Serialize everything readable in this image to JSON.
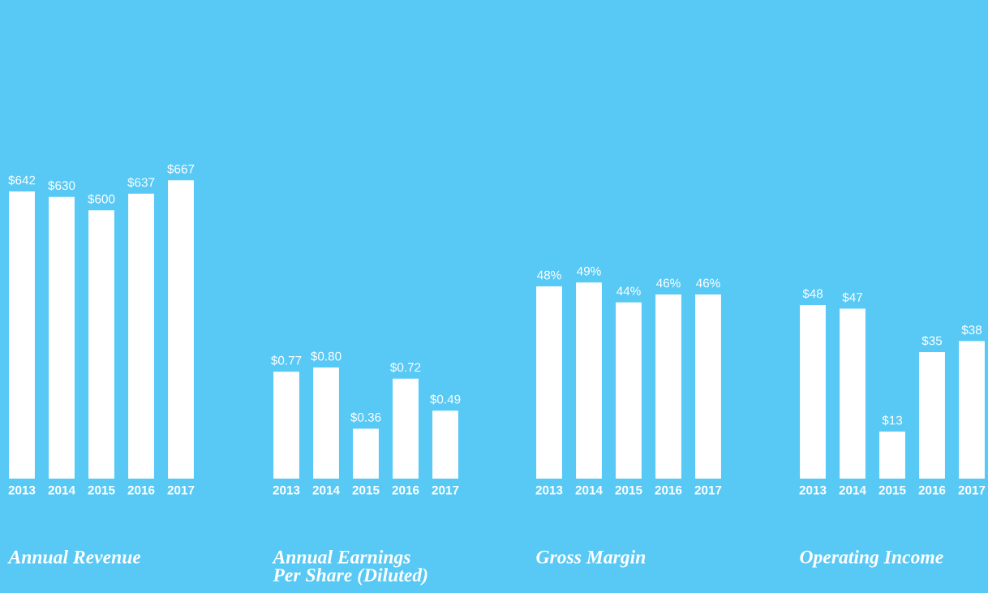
{
  "chart_data": [
    {
      "type": "bar",
      "title": "Annual Revenue",
      "categories": [
        "2013",
        "2014",
        "2015",
        "2016",
        "2017"
      ],
      "values": [
        642,
        630,
        600,
        637,
        667
      ],
      "value_labels": [
        "$642",
        "$630",
        "$600",
        "$637",
        "$667"
      ],
      "color": "#ffffff",
      "tick_labels": "x"
    },
    {
      "type": "bar",
      "title": "Annual Earnings\nPer Share (Diluted)",
      "categories": [
        "2013",
        "2014",
        "2015",
        "2016",
        "2017"
      ],
      "values": [
        0.77,
        0.8,
        0.36,
        0.72,
        0.49
      ],
      "value_labels": [
        "$0.77",
        "$0.80",
        "$0.36",
        "$0.72",
        "$0.49"
      ],
      "color": "#ffffff",
      "tick_labels": "x"
    },
    {
      "type": "bar",
      "title": "Gross Margin",
      "categories": [
        "2013",
        "2014",
        "2015",
        "2016",
        "2017"
      ],
      "values": [
        48,
        49,
        44,
        46,
        46
      ],
      "value_labels": [
        "48%",
        "49%",
        "44%",
        "46%",
        "46%"
      ],
      "color": "#ffffff",
      "tick_labels": "x"
    },
    {
      "type": "bar",
      "title": "Operating Income",
      "categories": [
        "2013",
        "2014",
        "2015",
        "2016",
        "2017"
      ],
      "values": [
        48,
        47,
        13,
        35,
        38
      ],
      "value_labels": [
        "$48",
        "$47",
        "$13",
        "$35",
        "$38"
      ],
      "color": "#ffffff",
      "tick_labels": "x"
    }
  ]
}
